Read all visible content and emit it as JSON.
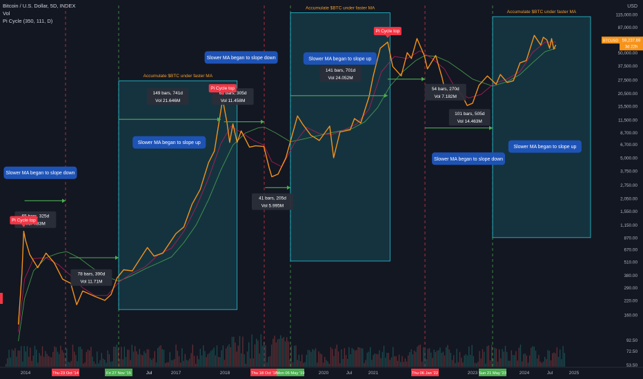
{
  "header": {
    "symbol_line": "Bitcoin / U.S. Dollar, 5D, INDEX",
    "vol_label": "Vol",
    "indicator_label": "Pi Cycle (350, 111, D)",
    "currency": "USD"
  },
  "price_tags": {
    "symbol": "BTCUSD",
    "price": "59,237.69",
    "countdown": "3d 22h"
  },
  "colors": {
    "background": "#131722",
    "price": "#f7931a",
    "fast_ma": "#c2185b",
    "slow_ma": "#4caf50",
    "box": "#26c6da",
    "callout": "#1e53b6",
    "pi_top": "#f23645",
    "measure_bg": "#2a2e39",
    "green_arrow": "#4caf50"
  },
  "chart_data": {
    "type": "line",
    "y_scale": "log",
    "y_axis_ticks": [
      "53.50",
      "72.50",
      "92.50",
      "160.00",
      "220.00",
      "290.00",
      "380.00",
      "510.00",
      "670.00",
      "870.00",
      "1,150.00",
      "1,550.00",
      "2,050.00",
      "2,750.00",
      "3,750.00",
      "5,000.00",
      "6,700.00",
      "8,700.00",
      "11,500.00",
      "15,500.00",
      "20,500.00",
      "27,500.00",
      "37,500.00",
      "50,000.00",
      "67,000.00",
      "87,000.00",
      "115,000.00"
    ],
    "x_axis_ticks": [
      "2014",
      "2017",
      "2018",
      "2020",
      "2021",
      "Jul",
      "2023",
      "2024",
      "Jul",
      "2025",
      "Jul",
      "Jul"
    ],
    "x_axis_highlighted_dates": [
      {
        "label": "Thu 23 Oct '14",
        "kind": "red"
      },
      {
        "label": "Fri 27 Nov '15",
        "kind": "green"
      },
      {
        "label": "Thu 18 Oct '18",
        "kind": "red"
      },
      {
        "label": "Mon 06 May '19",
        "kind": "green"
      },
      {
        "label": "Thu 06 Jan '22",
        "kind": "red"
      },
      {
        "label": "Sun 21 May '23",
        "kind": "green"
      }
    ],
    "series": [
      {
        "role": "price",
        "points": [
          [
            "2013-09-01",
            130
          ],
          [
            "2013-11-01",
            400
          ],
          [
            "2013-12-01",
            1000
          ],
          [
            "2014-01-01",
            820
          ],
          [
            "2014-02-01",
            600
          ],
          [
            "2014-04-01",
            450
          ],
          [
            "2014-06-01",
            620
          ],
          [
            "2014-08-01",
            500
          ],
          [
            "2014-10-01",
            350
          ],
          [
            "2014-12-01",
            320
          ],
          [
            "2015-01-15",
            200
          ],
          [
            "2015-03-01",
            270
          ],
          [
            "2015-06-01",
            240
          ],
          [
            "2015-08-15",
            220
          ],
          [
            "2015-10-01",
            250
          ],
          [
            "2015-11-15",
            360
          ],
          [
            "2016-01-01",
            430
          ],
          [
            "2016-03-01",
            420
          ],
          [
            "2016-06-15",
            700
          ],
          [
            "2016-08-01",
            580
          ],
          [
            "2016-10-01",
            620
          ],
          [
            "2017-01-01",
            950
          ],
          [
            "2017-03-01",
            1100
          ],
          [
            "2017-05-01",
            1800
          ],
          [
            "2017-07-01",
            2500
          ],
          [
            "2017-09-01",
            4500
          ],
          [
            "2017-10-15",
            5800
          ],
          [
            "2017-12-15",
            18000
          ],
          [
            "2018-01-15",
            11000
          ],
          [
            "2018-02-05",
            7000
          ],
          [
            "2018-03-01",
            10500
          ],
          [
            "2018-04-01",
            7000
          ],
          [
            "2018-05-01",
            9000
          ],
          [
            "2018-07-01",
            6300
          ],
          [
            "2018-08-15",
            6500
          ],
          [
            "2018-10-15",
            6400
          ],
          [
            "2018-11-25",
            4000
          ],
          [
            "2018-12-15",
            3300
          ],
          [
            "2019-02-01",
            3500
          ],
          [
            "2019-04-01",
            5000
          ],
          [
            "2019-06-26",
            12500
          ],
          [
            "2019-08-01",
            10500
          ],
          [
            "2019-10-01",
            8200
          ],
          [
            "2019-12-01",
            7300
          ],
          [
            "2020-02-15",
            10000
          ],
          [
            "2020-03-15",
            5000
          ],
          [
            "2020-05-01",
            8800
          ],
          [
            "2020-07-15",
            9200
          ],
          [
            "2020-08-15",
            11800
          ],
          [
            "2020-10-01",
            10700
          ],
          [
            "2020-12-01",
            19000
          ],
          [
            "2021-01-01",
            30000
          ],
          [
            "2021-02-20",
            55000
          ],
          [
            "2021-04-14",
            63000
          ],
          [
            "2021-05-20",
            37000
          ],
          [
            "2021-07-20",
            30000
          ],
          [
            "2021-09-01",
            50000
          ],
          [
            "2021-10-01",
            44000
          ],
          [
            "2021-11-10",
            68000
          ],
          [
            "2022-01-01",
            47000
          ],
          [
            "2022-01-24",
            35000
          ],
          [
            "2022-03-28",
            47000
          ],
          [
            "2022-05-15",
            29000
          ],
          [
            "2022-06-18",
            19000
          ],
          [
            "2022-08-15",
            24000
          ],
          [
            "2022-10-15",
            19500
          ],
          [
            "2022-11-21",
            15700
          ],
          [
            "2023-01-01",
            16500
          ],
          [
            "2023-02-15",
            24500
          ],
          [
            "2023-04-15",
            30000
          ],
          [
            "2023-06-15",
            25000
          ],
          [
            "2023-07-15",
            31000
          ],
          [
            "2023-09-01",
            26000
          ],
          [
            "2023-10-15",
            27000
          ],
          [
            "2023-12-01",
            40000
          ],
          [
            "2024-01-15",
            42000
          ],
          [
            "2024-03-14",
            73000
          ],
          [
            "2024-05-01",
            59000
          ],
          [
            "2024-05-20",
            70000
          ],
          [
            "2024-06-15",
            66000
          ],
          [
            "2024-07-05",
            55000
          ],
          [
            "2024-07-20",
            68000
          ],
          [
            "2024-08-05",
            54000
          ],
          [
            "2024-08-20",
            59237
          ]
        ]
      },
      {
        "role": "fast_ma",
        "points": [
          [
            "2013-09-01",
            110
          ],
          [
            "2013-12-15",
            350
          ],
          [
            "2014-03-01",
            550
          ],
          [
            "2014-06-01",
            560
          ],
          [
            "2014-09-01",
            480
          ],
          [
            "2014-12-01",
            380
          ],
          [
            "2015-03-01",
            290
          ],
          [
            "2015-06-01",
            245
          ],
          [
            "2015-09-01",
            245
          ],
          [
            "2015-12-01",
            330
          ],
          [
            "2016-03-01",
            400
          ],
          [
            "2016-06-01",
            460
          ],
          [
            "2016-09-01",
            600
          ],
          [
            "2016-12-01",
            690
          ],
          [
            "2017-03-01",
            1000
          ],
          [
            "2017-06-01",
            1700
          ],
          [
            "2017-09-01",
            3200
          ],
          [
            "2017-12-01",
            6800
          ],
          [
            "2018-02-15",
            10000
          ],
          [
            "2018-05-01",
            8700
          ],
          [
            "2018-08-01",
            7300
          ],
          [
            "2018-10-15",
            6600
          ],
          [
            "2018-12-15",
            4600
          ],
          [
            "2019-03-01",
            4100
          ],
          [
            "2019-06-01",
            6800
          ],
          [
            "2019-09-01",
            9700
          ],
          [
            "2019-12-01",
            8500
          ],
          [
            "2020-03-01",
            8300
          ],
          [
            "2020-06-01",
            9200
          ],
          [
            "2020-09-01",
            10500
          ],
          [
            "2020-12-01",
            14500
          ],
          [
            "2021-03-01",
            33000
          ],
          [
            "2021-06-01",
            46000
          ],
          [
            "2021-09-01",
            44000
          ],
          [
            "2021-12-01",
            52000
          ],
          [
            "2022-03-01",
            44000
          ],
          [
            "2022-06-01",
            35000
          ],
          [
            "2022-09-01",
            22000
          ],
          [
            "2022-12-01",
            18500
          ],
          [
            "2023-03-01",
            20000
          ],
          [
            "2023-06-01",
            25500
          ],
          [
            "2023-09-01",
            28000
          ],
          [
            "2023-12-01",
            33000
          ],
          [
            "2024-03-01",
            50000
          ],
          [
            "2024-06-01",
            63000
          ],
          [
            "2024-08-20",
            63000
          ]
        ]
      },
      {
        "role": "slow_ma",
        "points": [
          [
            "2013-09-01",
            90
          ],
          [
            "2013-12-15",
            230
          ],
          [
            "2014-03-01",
            420
          ],
          [
            "2014-06-01",
            560
          ],
          [
            "2014-09-01",
            620
          ],
          [
            "2014-11-01",
            640
          ],
          [
            "2015-02-01",
            560
          ],
          [
            "2015-05-01",
            460
          ],
          [
            "2015-08-01",
            380
          ],
          [
            "2015-11-27",
            335
          ],
          [
            "2016-03-01",
            380
          ],
          [
            "2016-06-01",
            440
          ],
          [
            "2016-09-01",
            500
          ],
          [
            "2016-12-01",
            570
          ],
          [
            "2017-03-01",
            780
          ],
          [
            "2017-06-01",
            1150
          ],
          [
            "2017-09-01",
            2000
          ],
          [
            "2017-12-01",
            3800
          ],
          [
            "2018-03-01",
            6600
          ],
          [
            "2018-06-01",
            8600
          ],
          [
            "2018-09-01",
            9600
          ],
          [
            "2018-10-18",
            9800
          ],
          [
            "2019-01-15",
            8600
          ],
          [
            "2019-05-06",
            7100
          ],
          [
            "2019-08-01",
            7500
          ],
          [
            "2019-11-01",
            8000
          ],
          [
            "2020-02-01",
            8500
          ],
          [
            "2020-05-01",
            9000
          ],
          [
            "2020-08-01",
            9500
          ],
          [
            "2020-11-01",
            11000
          ],
          [
            "2021-02-01",
            15000
          ],
          [
            "2021-05-01",
            24000
          ],
          [
            "2021-08-01",
            33000
          ],
          [
            "2021-11-01",
            42000
          ],
          [
            "2022-01-06",
            47000
          ],
          [
            "2022-04-01",
            46000
          ],
          [
            "2022-07-01",
            41000
          ],
          [
            "2022-10-01",
            34000
          ],
          [
            "2023-01-01",
            28000
          ],
          [
            "2023-05-21",
            24000
          ],
          [
            "2023-09-01",
            26500
          ],
          [
            "2023-12-01",
            31000
          ],
          [
            "2024-03-01",
            40000
          ],
          [
            "2024-06-01",
            51000
          ],
          [
            "2024-08-20",
            55000
          ]
        ]
      }
    ]
  },
  "boxes": [
    {
      "start": "2015-11-27",
      "end": "2018-04-01",
      "top": 27000,
      "bottom": 180,
      "label": "Accumulate $BTC under faster MA"
    },
    {
      "start": "2019-05-06",
      "end": "2021-05-01",
      "top": 120000,
      "bottom": 520,
      "label": "Accumulate $BTC under faster MA"
    },
    {
      "start": "2023-05-21",
      "end": "2025-06-01",
      "top": 110000,
      "bottom": 870,
      "label": "Accumulate $BTC under faster MA"
    }
  ],
  "vlines": [
    {
      "date": "2014-10-23",
      "kind": "red"
    },
    {
      "date": "2015-11-27",
      "kind": "green"
    },
    {
      "date": "2018-10-18",
      "kind": "red"
    },
    {
      "date": "2019-05-06",
      "kind": "green"
    },
    {
      "date": "2022-01-06",
      "kind": "red"
    },
    {
      "date": "2023-05-21",
      "kind": "green"
    }
  ],
  "pi_tops": [
    {
      "date": "2013-12-01",
      "price": 1000,
      "label": "Pi Cycle top"
    },
    {
      "date": "2017-12-15",
      "price": 18000,
      "label": "Pi Cycle top"
    },
    {
      "date": "2021-04-14",
      "price": 63000,
      "label": "Pi Cycle top"
    }
  ],
  "measures": [
    {
      "lines": [
        "65 bars, 325d",
        "Vol 4.83M"
      ],
      "date": "2014-03-15",
      "price": 1350
    },
    {
      "lines": [
        "78 bars, 390d",
        "Vol 11.71M"
      ],
      "date": "2015-05-05",
      "price": 380
    },
    {
      "lines": [
        "149 bars, 741d",
        "Vol 21.646M"
      ],
      "date": "2016-11-05",
      "price": 20000
    },
    {
      "lines": [
        "61 bars, 305d",
        "Vol 11.458M"
      ],
      "date": "2018-03-01",
      "price": 20000
    },
    {
      "lines": [
        "41 bars, 205d",
        "Vol 5.995M"
      ],
      "date": "2018-12-20",
      "price": 2000
    },
    {
      "lines": [
        "141 bars, 701d",
        "Vol 24.052M"
      ],
      "date": "2020-05-05",
      "price": 33000
    },
    {
      "lines": [
        "54 bars, 270d",
        "Vol 7.182M"
      ],
      "date": "2022-06-10",
      "price": 22000
    },
    {
      "lines": [
        "101 bars, 505d",
        "Vol 14.463M"
      ],
      "date": "2022-12-10",
      "price": 12700
    }
  ],
  "callouts": [
    {
      "text": "Slower MA began to slope down",
      "date": "2014-04-20",
      "price": 3600
    },
    {
      "text": "Slower MA began to slope down",
      "date": "2018-05-01",
      "price": 45000
    },
    {
      "text": "Slower MA began to slope up",
      "date": "2016-11-15",
      "price": 7000
    },
    {
      "text": "Slower MA began to slope up",
      "date": "2020-05-01",
      "price": 44000
    },
    {
      "text": "Slower MA began to slope down",
      "date": "2022-12-01",
      "price": 4900
    },
    {
      "text": "Slower MA began to slope up",
      "date": "2024-06-01",
      "price": 6400
    }
  ],
  "green_arrows": [
    {
      "from": "2013-12-15",
      "to": "2014-10-23",
      "price": 1950
    },
    {
      "from": "2014-11-20",
      "to": "2015-11-27",
      "price": 560
    },
    {
      "from": "2015-11-27",
      "to": "2017-12-01",
      "price": 11600
    },
    {
      "from": "2017-12-25",
      "to": "2018-10-18",
      "price": 11000
    },
    {
      "from": "2018-10-25",
      "to": "2019-05-06",
      "price": 2600
    },
    {
      "from": "2019-05-06",
      "to": "2021-04-14",
      "price": 19500
    },
    {
      "from": "2021-04-14",
      "to": "2022-01-06",
      "price": 28000
    },
    {
      "from": "2022-01-06",
      "to": "2023-05-21",
      "price": 9600
    }
  ]
}
